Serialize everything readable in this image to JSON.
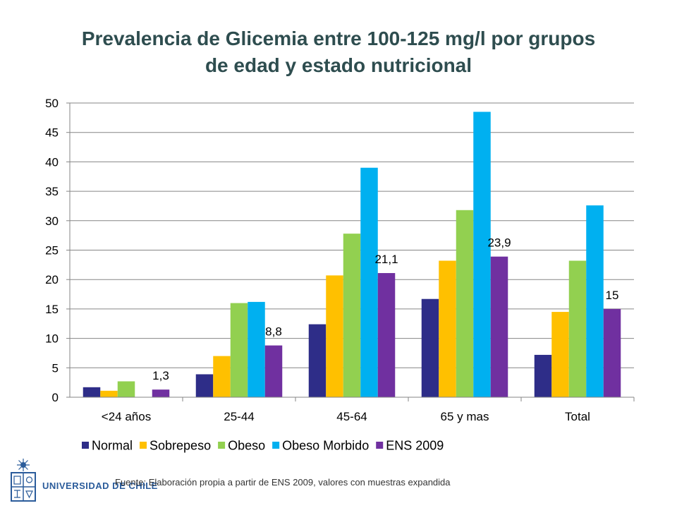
{
  "title_lines": [
    "Prevalencia de Glicemia entre 100-125 mg/l por grupos",
    "de edad  y estado nutricional"
  ],
  "source_note": "Fuente: Elaboración propia a partir de ENS 2009,  valores con muestras expandida",
  "university": {
    "name": "UNIVERSIDAD DE CHILE",
    "logo_icon": "university-crest-icon"
  },
  "colors": {
    "title": "#2E4D4F",
    "Normal": "#2E2D88",
    "Sobrepeso": "#FFC000",
    "Obeso": "#92D050",
    "Obeso Morbido": "#00B0F0",
    "ENS 2009": "#7030A0"
  },
  "chart_data": {
    "type": "bar",
    "title": "Prevalencia de Glicemia entre 100-125 mg/l por grupos de edad  y estado nutricional",
    "xlabel": "",
    "ylabel": "",
    "ylim": [
      0,
      50
    ],
    "yticks": [
      0,
      5,
      10,
      15,
      20,
      25,
      30,
      35,
      40,
      45,
      50
    ],
    "grid": true,
    "legend_position": "bottom",
    "categories": [
      "<24 años",
      "25-44",
      "45-64",
      "65 y mas",
      "Total"
    ],
    "series": [
      {
        "name": "Normal",
        "values": [
          1.7,
          3.9,
          12.4,
          16.7,
          7.2
        ]
      },
      {
        "name": "Sobrepeso",
        "values": [
          1.1,
          7.0,
          20.7,
          23.2,
          14.5
        ]
      },
      {
        "name": "Obeso",
        "values": [
          2.7,
          16.0,
          27.8,
          31.8,
          23.2
        ]
      },
      {
        "name": "Obeso Morbido",
        "values": [
          null,
          16.2,
          39.0,
          48.5,
          32.6
        ]
      },
      {
        "name": "ENS 2009",
        "values": [
          1.3,
          8.8,
          21.1,
          23.9,
          15
        ],
        "labels": [
          "1,3",
          "8,8",
          "21,1",
          "23,9",
          "15"
        ]
      }
    ]
  }
}
